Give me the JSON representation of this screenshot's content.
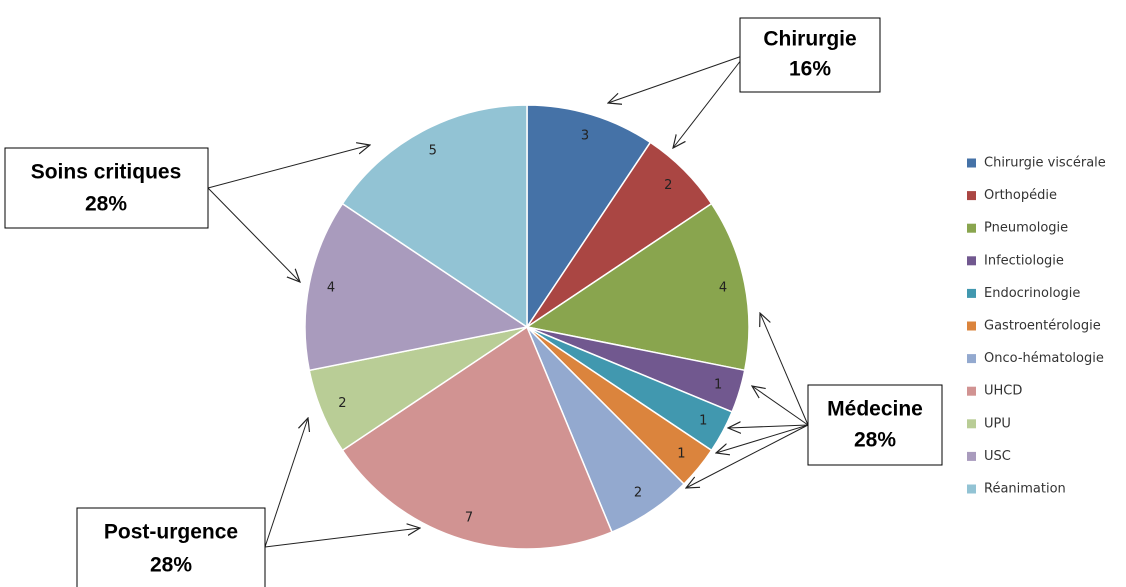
{
  "chart_data": {
    "type": "pie",
    "categories": [
      "Chirurgie viscérale",
      "Orthopédie",
      "Pneumologie",
      "Infectiologie",
      "Endocrinologie",
      "Gastroentérologie",
      "Onco-hématologie",
      "UHCD",
      "UPU",
      "USC",
      "Réanimation"
    ],
    "values": [
      3,
      2,
      4,
      1,
      1,
      1,
      2,
      7,
      2,
      4,
      5
    ],
    "colors": [
      "#4572A7",
      "#AA4643",
      "#89A54E",
      "#71588F",
      "#4198AF",
      "#DB843D",
      "#93A9CF",
      "#D19392",
      "#B9CD96",
      "#A99BBD",
      "#92C3D4"
    ],
    "legend": "right",
    "annotations": [
      {
        "title": "Chirurgie",
        "percent": "16%"
      },
      {
        "title": "Soins critiques",
        "percent": "28%"
      },
      {
        "title": "Médecine",
        "percent": "28%"
      },
      {
        "title": "Post-urgence",
        "percent": "28%"
      }
    ]
  }
}
